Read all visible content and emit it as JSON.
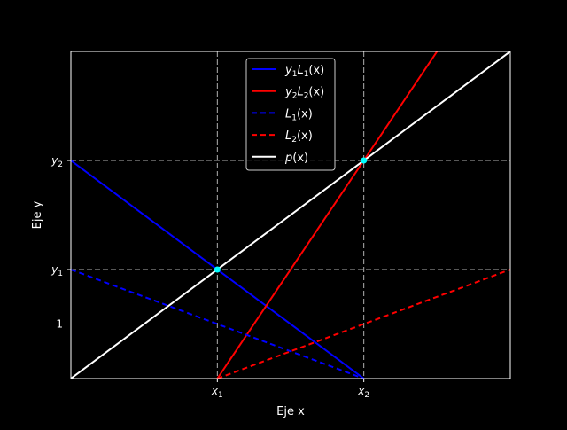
{
  "chart_data": {
    "type": "line",
    "xlabel": "Eje x",
    "ylabel": "Eje y",
    "xlim": [
      -1,
      2
    ],
    "ylim": [
      0,
      3
    ],
    "grid": true,
    "grid_style": "dashed",
    "background": "#000000",
    "foreground": "#ffffff",
    "legend_position": "top-center",
    "x_ticks": [
      {
        "value": 0,
        "label": "x",
        "sub": "1"
      },
      {
        "value": 1,
        "label": "x",
        "sub": "2"
      }
    ],
    "y_ticks": [
      {
        "value": 0.5,
        "label": "1",
        "sub": ""
      },
      {
        "value": 1,
        "label": "y",
        "sub": "1"
      },
      {
        "value": 2,
        "label": "y",
        "sub": "2"
      }
    ],
    "series": [
      {
        "name": "y1L1(x)",
        "legend_main": "y",
        "legend_sub": "1",
        "legend_rest": "L",
        "legend_sub2": "1",
        "legend_tail": "(x)",
        "color": "#0000ff",
        "dash": "solid",
        "points": [
          [
            -1,
            2
          ],
          [
            1,
            0
          ]
        ]
      },
      {
        "name": "y2L2(x)",
        "legend_main": "y",
        "legend_sub": "2",
        "legend_rest": "L",
        "legend_sub2": "2",
        "legend_tail": "(x)",
        "color": "#ff0000",
        "dash": "solid",
        "points": [
          [
            0,
            0
          ],
          [
            1.5,
            3
          ]
        ]
      },
      {
        "name": "L1(x)",
        "legend_main": "L",
        "legend_sub": "1",
        "legend_rest": "",
        "legend_sub2": "",
        "legend_tail": "(x)",
        "color": "#0000ff",
        "dash": "dashed",
        "points": [
          [
            -1,
            1
          ],
          [
            1,
            0
          ]
        ]
      },
      {
        "name": "L2(x)",
        "legend_main": "L",
        "legend_sub": "2",
        "legend_rest": "",
        "legend_sub2": "",
        "legend_tail": "(x)",
        "color": "#ff0000",
        "dash": "dashed",
        "points": [
          [
            0,
            0
          ],
          [
            2,
            1
          ]
        ]
      },
      {
        "name": "p(x)",
        "legend_main": "p",
        "legend_sub": "",
        "legend_rest": "",
        "legend_sub2": "",
        "legend_tail": "(x)",
        "color": "#ffffff",
        "dash": "solid",
        "points": [
          [
            -1,
            0
          ],
          [
            2,
            3
          ]
        ]
      }
    ],
    "markers": [
      {
        "x": 0,
        "y": 1,
        "color": "#00ffff"
      },
      {
        "x": 1,
        "y": 2,
        "color": "#00ffff"
      }
    ]
  }
}
